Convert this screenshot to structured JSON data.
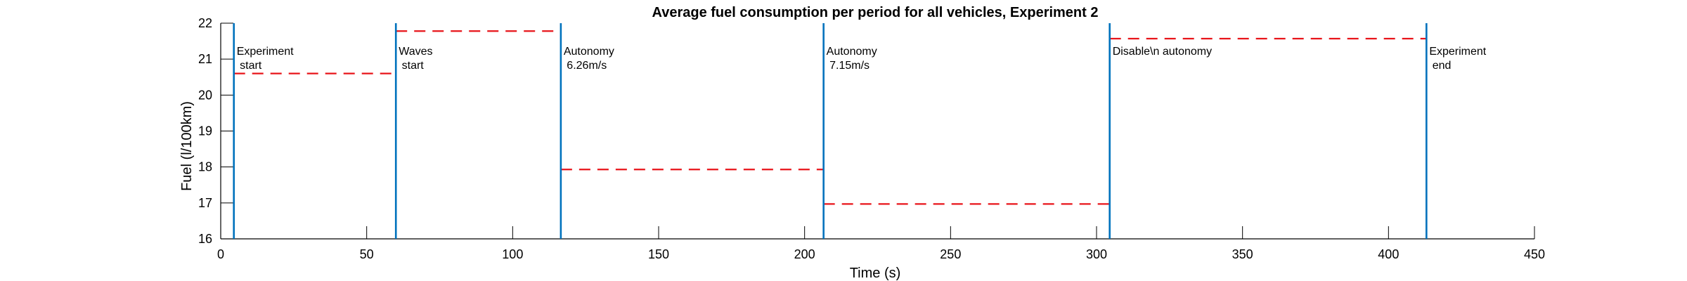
{
  "chart_data": {
    "type": "line",
    "title": "Average fuel consumption per period for all vehicles, Experiment 2",
    "xlabel": "Time (s)",
    "ylabel": "Fuel (l/100km)",
    "xlim": [
      0,
      450
    ],
    "ylim": [
      16,
      22
    ],
    "xticks": [
      0,
      50,
      100,
      150,
      200,
      250,
      300,
      350,
      400,
      450
    ],
    "yticks": [
      16,
      17,
      18,
      19,
      20,
      21,
      22
    ],
    "grid": false,
    "legend": "none",
    "colors": {
      "event_line": "#0072BD",
      "average": "#E8141A",
      "axis": "#000000"
    },
    "events": [
      {
        "x": 4.5,
        "lines": [
          "Experiment",
          " start"
        ]
      },
      {
        "x": 60,
        "lines": [
          "Waves",
          " start"
        ]
      },
      {
        "x": 116.5,
        "lines": [
          "Autonomy",
          " 6.26m/s"
        ]
      },
      {
        "x": 206.5,
        "lines": [
          "Autonomy",
          " 7.15m/s"
        ]
      },
      {
        "x": 304.5,
        "lines": [
          "Disable\\n autonomy"
        ]
      },
      {
        "x": 413,
        "lines": [
          "Experiment",
          " end"
        ]
      }
    ],
    "series": [
      {
        "style": "dashed",
        "segments": [
          {
            "x": [
              4.5,
              60
            ],
            "y": 20.6
          },
          {
            "x": [
              60,
              116.5
            ],
            "y": 21.78
          },
          {
            "x": [
              116.5,
              206.5
            ],
            "y": 17.93
          },
          {
            "x": [
              206.5,
              304.5
            ],
            "y": 16.97
          },
          {
            "x": [
              304.5,
              413
            ],
            "y": 21.57
          }
        ]
      }
    ]
  }
}
